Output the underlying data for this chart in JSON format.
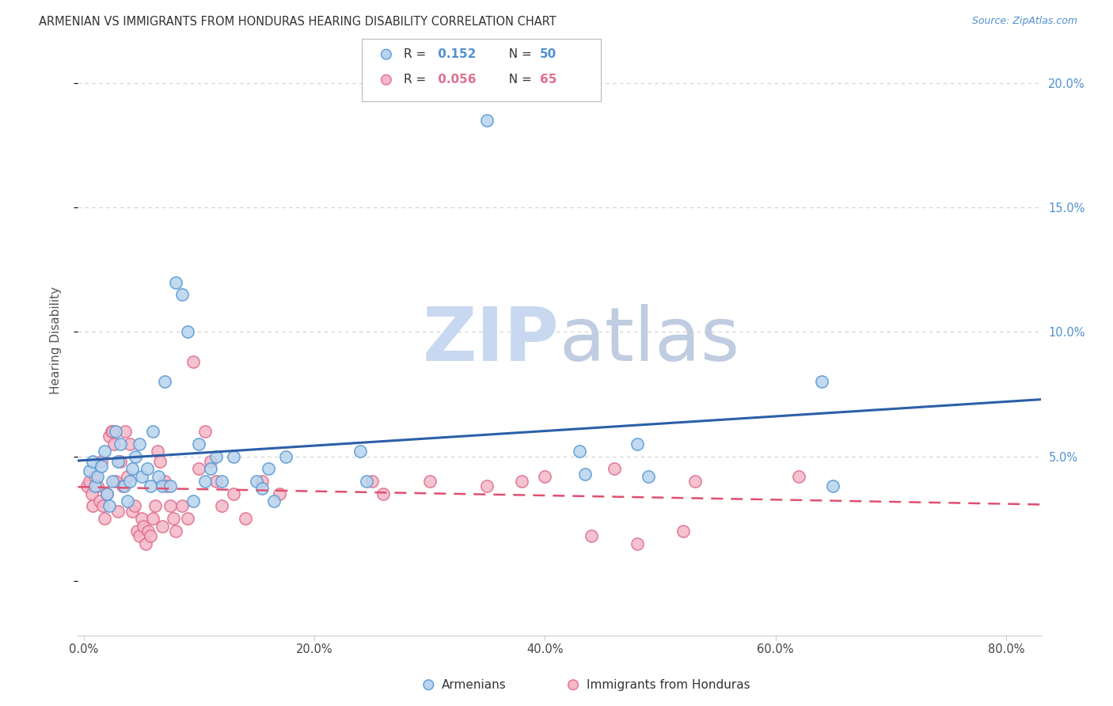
{
  "title": "ARMENIAN VS IMMIGRANTS FROM HONDURAS HEARING DISABILITY CORRELATION CHART",
  "source": "Source: ZipAtlas.com",
  "ylabel": "Hearing Disability",
  "x_tick_labels": [
    "0.0%",
    "20.0%",
    "40.0%",
    "60.0%",
    "80.0%"
  ],
  "x_tick_values": [
    0.0,
    0.2,
    0.4,
    0.6,
    0.8
  ],
  "y_tick_labels": [
    "",
    "5.0%",
    "10.0%",
    "15.0%",
    "20.0%"
  ],
  "y_tick_values": [
    0.0,
    0.05,
    0.1,
    0.15,
    0.2
  ],
  "xlim": [
    -0.005,
    0.83
  ],
  "ylim": [
    -0.022,
    0.215
  ],
  "armenian_color": "#b8d4ee",
  "armenian_edge_color": "#5b9bd5",
  "honduras_color": "#f4b8c8",
  "honduras_edge_color": "#e07090",
  "trend_armenian_color": "#2c5fa8",
  "trend_honduras_color": "#e05070",
  "watermark_zip_color": "#c8d8f0",
  "watermark_atlas_color": "#c0cce0",
  "background_color": "#ffffff",
  "grid_color": "#d0d0d0",
  "right_tick_color": "#5090d0",
  "title_color": "#333333",
  "legend_r_color_blue": "#5090d0",
  "legend_r_color_pink": "#e07090",
  "armenians_scatter": [
    [
      0.005,
      0.044
    ],
    [
      0.008,
      0.048
    ],
    [
      0.01,
      0.038
    ],
    [
      0.012,
      0.042
    ],
    [
      0.015,
      0.046
    ],
    [
      0.018,
      0.052
    ],
    [
      0.02,
      0.035
    ],
    [
      0.022,
      0.03
    ],
    [
      0.025,
      0.04
    ],
    [
      0.028,
      0.06
    ],
    [
      0.03,
      0.048
    ],
    [
      0.032,
      0.055
    ],
    [
      0.035,
      0.038
    ],
    [
      0.038,
      0.032
    ],
    [
      0.04,
      0.04
    ],
    [
      0.042,
      0.045
    ],
    [
      0.045,
      0.05
    ],
    [
      0.048,
      0.055
    ],
    [
      0.05,
      0.042
    ],
    [
      0.055,
      0.045
    ],
    [
      0.058,
      0.038
    ],
    [
      0.06,
      0.06
    ],
    [
      0.065,
      0.042
    ],
    [
      0.068,
      0.038
    ],
    [
      0.07,
      0.08
    ],
    [
      0.075,
      0.038
    ],
    [
      0.08,
      0.12
    ],
    [
      0.085,
      0.115
    ],
    [
      0.09,
      0.1
    ],
    [
      0.095,
      0.032
    ],
    [
      0.1,
      0.055
    ],
    [
      0.105,
      0.04
    ],
    [
      0.11,
      0.045
    ],
    [
      0.115,
      0.05
    ],
    [
      0.12,
      0.04
    ],
    [
      0.13,
      0.05
    ],
    [
      0.15,
      0.04
    ],
    [
      0.155,
      0.037
    ],
    [
      0.16,
      0.045
    ],
    [
      0.165,
      0.032
    ],
    [
      0.175,
      0.05
    ],
    [
      0.24,
      0.052
    ],
    [
      0.245,
      0.04
    ],
    [
      0.35,
      0.185
    ],
    [
      0.43,
      0.052
    ],
    [
      0.435,
      0.043
    ],
    [
      0.48,
      0.055
    ],
    [
      0.49,
      0.042
    ],
    [
      0.64,
      0.08
    ],
    [
      0.65,
      0.038
    ]
  ],
  "honduras_scatter": [
    [
      0.003,
      0.038
    ],
    [
      0.005,
      0.04
    ],
    [
      0.007,
      0.035
    ],
    [
      0.008,
      0.03
    ],
    [
      0.01,
      0.042
    ],
    [
      0.012,
      0.038
    ],
    [
      0.014,
      0.032
    ],
    [
      0.015,
      0.048
    ],
    [
      0.017,
      0.03
    ],
    [
      0.018,
      0.025
    ],
    [
      0.02,
      0.035
    ],
    [
      0.022,
      0.058
    ],
    [
      0.024,
      0.06
    ],
    [
      0.025,
      0.06
    ],
    [
      0.026,
      0.055
    ],
    [
      0.028,
      0.04
    ],
    [
      0.03,
      0.028
    ],
    [
      0.032,
      0.048
    ],
    [
      0.034,
      0.038
    ],
    [
      0.036,
      0.06
    ],
    [
      0.038,
      0.042
    ],
    [
      0.04,
      0.055
    ],
    [
      0.042,
      0.028
    ],
    [
      0.044,
      0.03
    ],
    [
      0.046,
      0.02
    ],
    [
      0.048,
      0.018
    ],
    [
      0.05,
      0.025
    ],
    [
      0.052,
      0.022
    ],
    [
      0.054,
      0.015
    ],
    [
      0.056,
      0.02
    ],
    [
      0.058,
      0.018
    ],
    [
      0.06,
      0.025
    ],
    [
      0.062,
      0.03
    ],
    [
      0.064,
      0.052
    ],
    [
      0.066,
      0.048
    ],
    [
      0.068,
      0.022
    ],
    [
      0.07,
      0.04
    ],
    [
      0.072,
      0.038
    ],
    [
      0.075,
      0.03
    ],
    [
      0.078,
      0.025
    ],
    [
      0.08,
      0.02
    ],
    [
      0.085,
      0.03
    ],
    [
      0.09,
      0.025
    ],
    [
      0.095,
      0.088
    ],
    [
      0.1,
      0.045
    ],
    [
      0.105,
      0.06
    ],
    [
      0.11,
      0.048
    ],
    [
      0.115,
      0.04
    ],
    [
      0.12,
      0.03
    ],
    [
      0.13,
      0.035
    ],
    [
      0.14,
      0.025
    ],
    [
      0.155,
      0.04
    ],
    [
      0.17,
      0.035
    ],
    [
      0.25,
      0.04
    ],
    [
      0.26,
      0.035
    ],
    [
      0.3,
      0.04
    ],
    [
      0.35,
      0.038
    ],
    [
      0.38,
      0.04
    ],
    [
      0.4,
      0.042
    ],
    [
      0.44,
      0.018
    ],
    [
      0.46,
      0.045
    ],
    [
      0.48,
      0.015
    ],
    [
      0.52,
      0.02
    ],
    [
      0.53,
      0.04
    ],
    [
      0.62,
      0.042
    ]
  ]
}
